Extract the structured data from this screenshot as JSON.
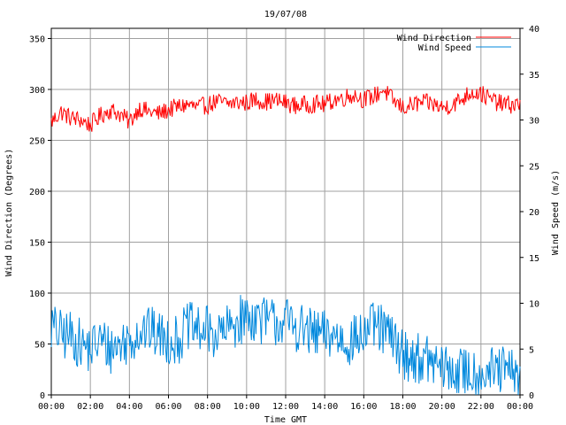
{
  "chart_data": {
    "type": "line",
    "title": "19/07/08",
    "xlabel": "Time GMT",
    "ylabel_left": "Wind Direction (Degrees)",
    "ylabel_right": "Wind Speed (m/s)",
    "x_tick_labels": [
      "00:00",
      "02:00",
      "04:00",
      "06:00",
      "08:00",
      "10:00",
      "12:00",
      "14:00",
      "16:00",
      "18:00",
      "20:00",
      "22:00",
      "00:00"
    ],
    "x_range_hours": [
      0,
      24
    ],
    "y_left_ticks": [
      "0",
      "50",
      "100",
      "150",
      "200",
      "250",
      "300",
      "350"
    ],
    "y_left_range": [
      0,
      360
    ],
    "y_right_ticks": [
      "0",
      "5",
      "10",
      "15",
      "20",
      "25",
      "30",
      "35",
      "40"
    ],
    "y_right_range": [
      0,
      40
    ],
    "grid": true,
    "legend_position": "top-right",
    "series": [
      {
        "name": "Wind Direction",
        "axis": "left",
        "color": "#ff0000",
        "x_hours": [
          0,
          0.5,
          1,
          1.5,
          2,
          2.5,
          3,
          3.5,
          4,
          4.5,
          5,
          5.5,
          6,
          6.5,
          7,
          7.5,
          8,
          8.5,
          9,
          9.5,
          10,
          10.5,
          11,
          11.5,
          12,
          12.5,
          13,
          13.5,
          14,
          14.5,
          15,
          15.5,
          16,
          16.5,
          17,
          17.5,
          18,
          18.5,
          19,
          19.5,
          20,
          20.5,
          21,
          21.5,
          22,
          22.5,
          23,
          23.5,
          24
        ],
        "values": [
          268,
          278,
          272,
          270,
          265,
          274,
          280,
          276,
          268,
          282,
          278,
          276,
          280,
          283,
          285,
          282,
          285,
          288,
          286,
          287,
          287,
          290,
          288,
          289,
          287,
          284,
          285,
          286,
          285,
          290,
          292,
          295,
          290,
          293,
          300,
          289,
          282,
          285,
          287,
          286,
          282,
          285,
          290,
          298,
          296,
          290,
          286,
          285,
          285
        ]
      },
      {
        "name": "Wind Speed",
        "axis": "right",
        "color": "#0088dd",
        "x_hours": [
          0,
          0.5,
          1,
          1.5,
          2,
          2.5,
          3,
          3.5,
          4,
          4.5,
          5,
          5.5,
          6,
          6.5,
          7,
          7.5,
          8,
          8.5,
          9,
          9.5,
          10,
          10.5,
          11,
          11.5,
          12,
          12.5,
          13,
          13.5,
          14,
          14.5,
          15,
          15.5,
          16,
          16.5,
          17,
          17.5,
          18,
          18.5,
          19,
          19.5,
          20,
          20.5,
          21,
          21.5,
          22,
          22.5,
          23,
          23.5,
          24
        ],
        "values": [
          7.5,
          6.5,
          6.5,
          5.5,
          5,
          6,
          5,
          5.5,
          6,
          7,
          7,
          6.5,
          6,
          6,
          7.5,
          7,
          7,
          6.5,
          7,
          8,
          8.5,
          8.5,
          8,
          8,
          8,
          7.5,
          7,
          6.5,
          6.5,
          6.5,
          6,
          6,
          6.5,
          7.5,
          7,
          6,
          4.5,
          4,
          4,
          3.5,
          3,
          2.5,
          2.5,
          2.5,
          2.5,
          2.5,
          2.5,
          2.5,
          2
        ]
      }
    ]
  }
}
